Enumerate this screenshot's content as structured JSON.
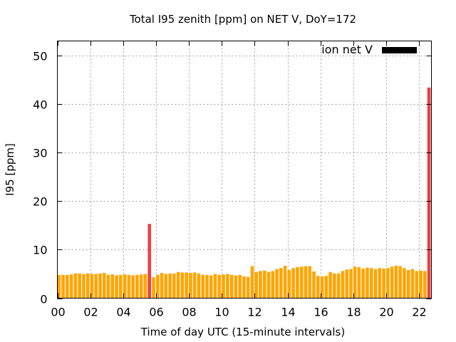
{
  "chart_data": {
    "type": "bar",
    "title": "Total I95 zenith [ppm] on NET V, DoY=172",
    "xlabel": "Time of day UTC (15-minute intervals)",
    "ylabel": "I95 [ppm]",
    "xlim": [
      0,
      22.75
    ],
    "ylim": [
      0,
      53
    ],
    "xticks": [
      "00",
      "02",
      "04",
      "06",
      "08",
      "10",
      "12",
      "14",
      "16",
      "18",
      "20",
      "22"
    ],
    "xtick_values": [
      0,
      2,
      4,
      6,
      8,
      10,
      12,
      14,
      16,
      18,
      20,
      22
    ],
    "yticks": [
      0,
      10,
      20,
      30,
      40,
      50
    ],
    "grid": true,
    "legend": {
      "label": "ion net V",
      "color": "#000000",
      "position": "top-right"
    },
    "bar_interval_hours": 0.25,
    "normal_color": "#ffa500",
    "highlight_color": "#f04040",
    "highlight_threshold": 10,
    "values": [
      4.8,
      4.8,
      4.8,
      4.9,
      5.1,
      5.1,
      5.0,
      5.1,
      5.0,
      5.0,
      5.1,
      5.2,
      4.8,
      4.9,
      4.7,
      4.8,
      4.9,
      4.8,
      4.7,
      4.8,
      4.9,
      5.0,
      15.3,
      4.3,
      4.8,
      5.2,
      5.0,
      5.1,
      5.1,
      5.4,
      5.3,
      5.3,
      5.2,
      5.3,
      5.1,
      4.8,
      4.8,
      4.7,
      5.0,
      4.8,
      4.9,
      5.0,
      4.8,
      4.7,
      4.8,
      4.5,
      4.4,
      6.6,
      5.4,
      5.6,
      5.7,
      5.4,
      5.6,
      6.0,
      6.2,
      6.7,
      5.8,
      6.2,
      6.4,
      6.5,
      6.6,
      6.6,
      5.5,
      4.6,
      4.5,
      4.6,
      5.4,
      5.1,
      5.1,
      5.6,
      5.9,
      6.0,
      6.5,
      6.4,
      6.1,
      6.3,
      6.2,
      6.0,
      6.2,
      6.1,
      6.2,
      6.5,
      6.7,
      6.6,
      6.2,
      5.8,
      6.0,
      5.6,
      5.7,
      5.6,
      43.4
    ]
  }
}
